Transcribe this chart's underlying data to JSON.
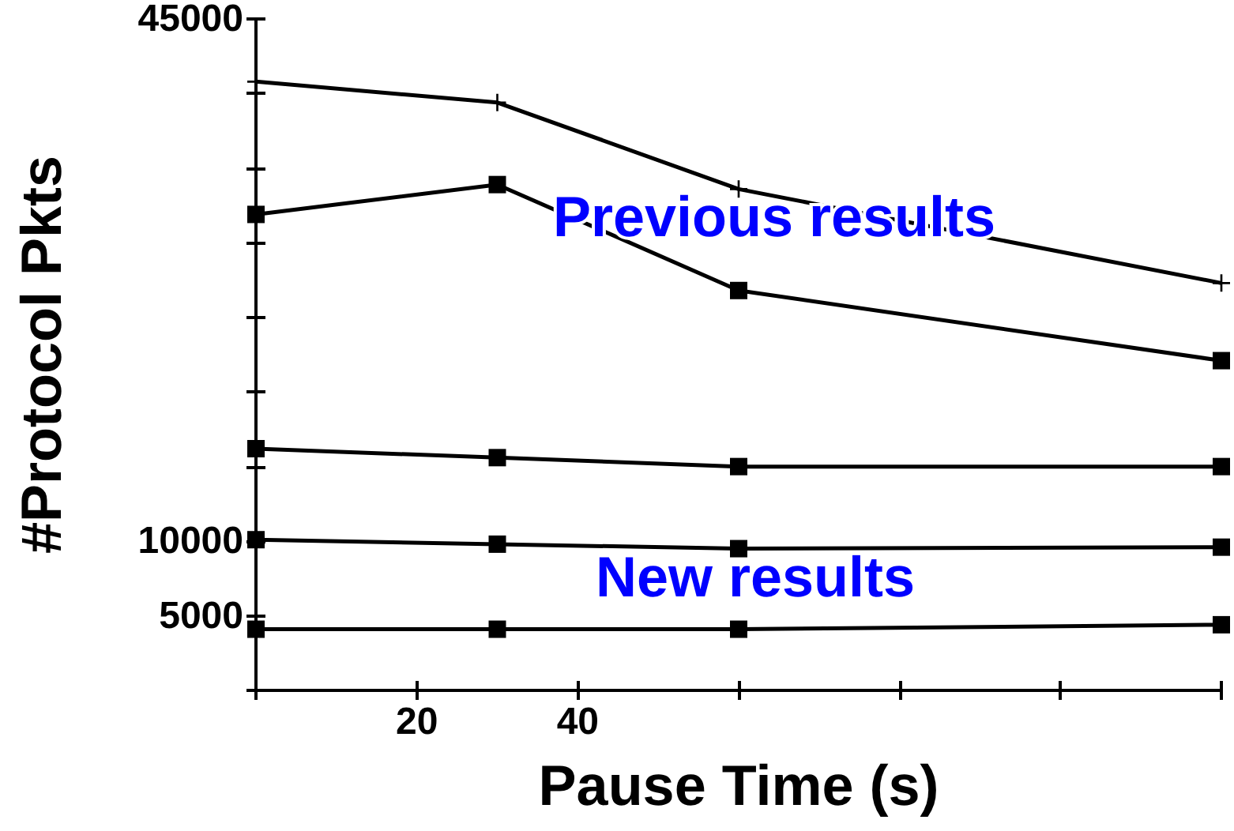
{
  "chart_data": {
    "type": "line",
    "xlabel": "Pause Time (s)",
    "ylabel": "#Protocol Pkts",
    "x": [
      0,
      30,
      60,
      120
    ],
    "series": [
      {
        "color": "#000000",
        "marker": "cross",
        "values": [
          40800,
          39400,
          33600,
          27300
        ]
      },
      {
        "color": "#000000",
        "marker": "square",
        "values": [
          31900,
          33900,
          26800,
          22100
        ]
      },
      {
        "color": "#000000",
        "marker": "square",
        "values": [
          16200,
          15600,
          15000,
          15000
        ]
      },
      {
        "color": "#000000",
        "marker": "square",
        "values": [
          10100,
          9800,
          9500,
          9600
        ]
      },
      {
        "color": "#000000",
        "marker": "square",
        "values": [
          4100,
          4100,
          4100,
          4400
        ]
      }
    ],
    "xlim": [
      0,
      120
    ],
    "xticks": [
      {
        "value": 0,
        "label": null
      },
      20,
      40,
      {
        "value": 60,
        "label": null
      },
      {
        "value": 80,
        "label": null
      },
      {
        "value": 100,
        "label": null
      },
      {
        "value": 120,
        "label": null
      }
    ],
    "ylim": [
      0,
      45000
    ],
    "yticks": [
      {
        "value": 0,
        "label": null
      },
      5000,
      10000,
      {
        "value": 15000,
        "label": null
      },
      {
        "value": 20000,
        "label": null
      },
      {
        "value": 25000,
        "label": null
      },
      {
        "value": 30000,
        "label": null
      },
      {
        "value": 35000,
        "label": null
      },
      {
        "value": 40000,
        "label": null
      },
      45000
    ],
    "annotations": [
      "Previous results",
      "New results"
    ],
    "grid": false,
    "line_style": "solid"
  }
}
